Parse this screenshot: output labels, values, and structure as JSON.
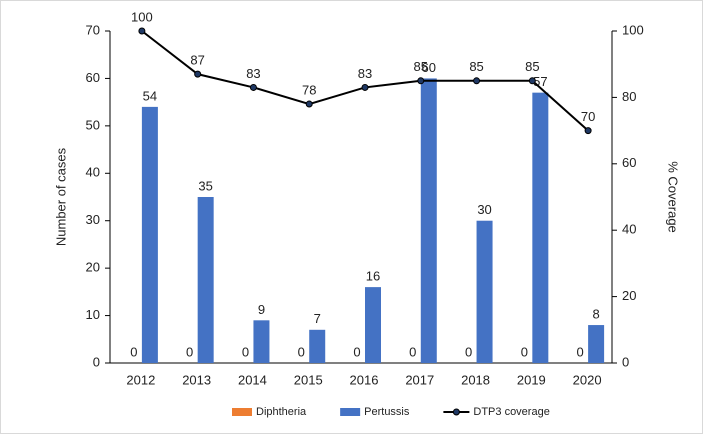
{
  "chart_data": {
    "type": "bar",
    "categories": [
      "2012",
      "2013",
      "2014",
      "2015",
      "2016",
      "2017",
      "2018",
      "2019",
      "2020"
    ],
    "series": [
      {
        "name": "Diphtheria",
        "color": "#ed7d31",
        "values": [
          0,
          0,
          0,
          0,
          0,
          0,
          0,
          0,
          0
        ]
      },
      {
        "name": "Pertussis",
        "color": "#4472c4",
        "values": [
          54,
          35,
          9,
          7,
          16,
          60,
          30,
          57,
          8
        ]
      },
      {
        "name": "DTP3 coverage",
        "color": "#000000",
        "type": "line",
        "axis": "y2",
        "values": [
          100,
          87,
          83,
          78,
          83,
          85,
          85,
          85,
          70
        ]
      }
    ],
    "y_label": "Number of cases",
    "y2_label": "% Coverage",
    "ylim": [
      0,
      70
    ],
    "yticks": [
      0,
      10,
      20,
      30,
      40,
      50,
      60,
      70
    ],
    "y2lim": [
      0,
      100
    ],
    "y2ticks": [
      0,
      20,
      40,
      60,
      80,
      100
    ],
    "legend": "bottom"
  }
}
